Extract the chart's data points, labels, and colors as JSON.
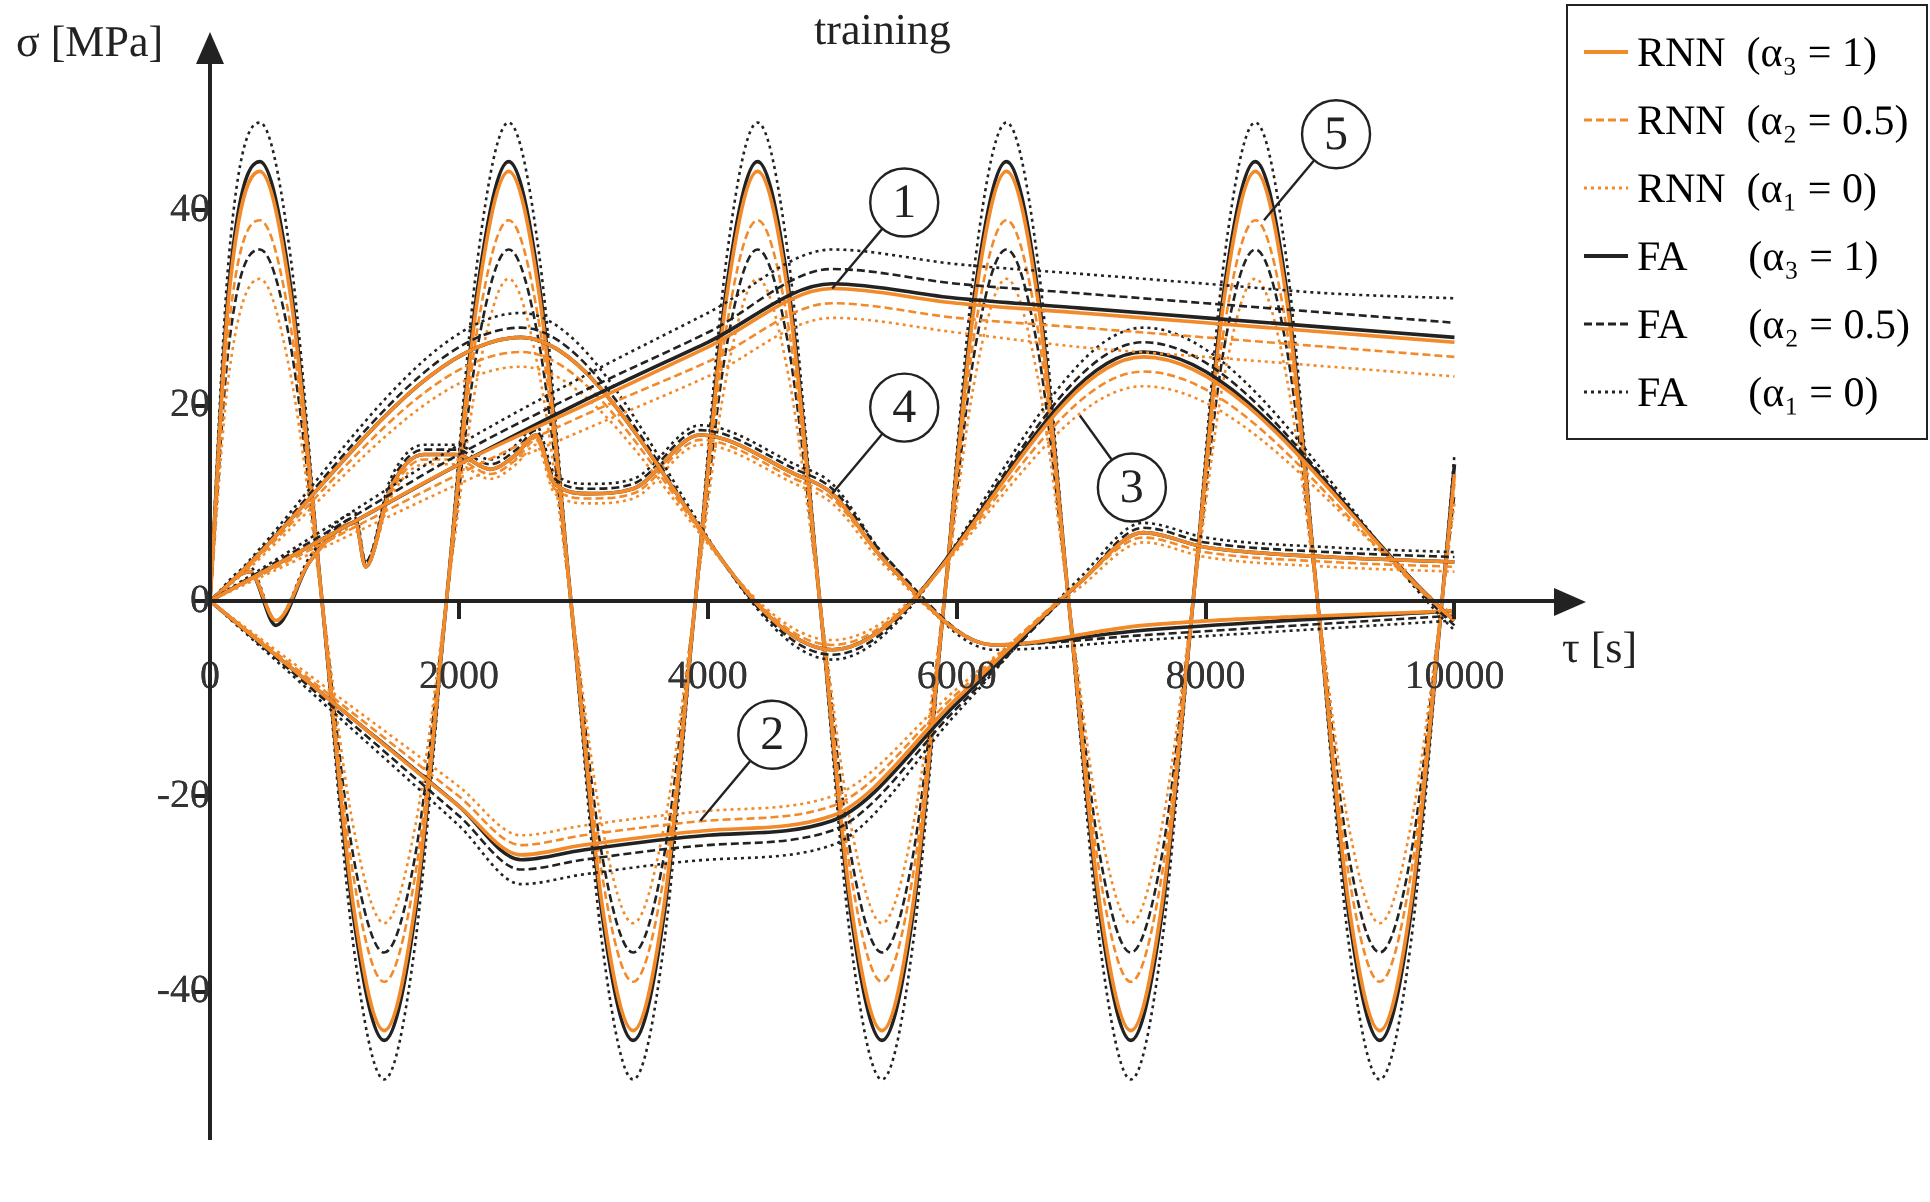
{
  "chart_data": {
    "type": "line",
    "title": "training",
    "xlabel": "τ [s]",
    "ylabel": "σ [MPa]",
    "xlim": [
      0,
      10800
    ],
    "ylim": [
      -55,
      55
    ],
    "xticks": [
      0,
      2000,
      4000,
      6000,
      8000,
      10000
    ],
    "yticks": [
      -40,
      -20,
      0,
      20,
      40
    ],
    "legend": "top right",
    "marker": "none",
    "annotations": [
      {
        "text": "1",
        "x": 5000,
        "y": 32
      },
      {
        "text": "2",
        "x": 3940,
        "y": -22.5
      },
      {
        "text": "3",
        "x": 6990,
        "y": 19
      },
      {
        "text": "4",
        "x": 5000,
        "y": 11
      },
      {
        "text": "5",
        "x": 8470,
        "y": 39
      }
    ],
    "series": [
      {
        "name": "RNN  (α₃ = 1)",
        "color": "#f28a2a",
        "line_style": "solid",
        "x": [
          0,
          1000,
          2000,
          3000,
          4000,
          5000,
          6000,
          7000,
          8000,
          9000,
          10000
        ],
        "values": [
          0,
          7,
          14,
          20,
          26,
          32,
          30.5,
          29.5,
          28.5,
          27.5,
          26.5
        ]
      },
      {
        "name": "RNN  (α₂ = 0.5)",
        "color": "#f28a2a",
        "line_style": "dashed",
        "x": [
          0,
          1000,
          2000,
          3000,
          4000,
          5000,
          6000,
          7000,
          8000,
          9000,
          10000
        ],
        "values": [
          0,
          6.5,
          13,
          19,
          24.5,
          30.5,
          29,
          28,
          27,
          26,
          25
        ]
      },
      {
        "name": "RNN  (α₁ = 0)",
        "color": "#f28a2a",
        "line_style": "dotted",
        "x": [
          0,
          1000,
          2000,
          3000,
          4000,
          5000,
          6000,
          7000,
          8000,
          9000,
          10000
        ],
        "values": [
          0,
          6,
          12,
          17.5,
          23,
          29,
          27.5,
          26,
          25,
          24,
          23
        ]
      },
      {
        "name": "FA      (α₃ = 1)",
        "color": "#222222",
        "line_style": "solid",
        "x": [
          0,
          1000,
          2000,
          3000,
          4000,
          5000,
          6000,
          7000,
          8000,
          9000,
          10000
        ],
        "values": [
          0,
          7,
          14,
          20.5,
          26.5,
          32.5,
          31,
          30,
          29,
          28,
          27
        ]
      },
      {
        "name": "FA      (α₂ = 0.5)",
        "color": "#222222",
        "line_style": "dashed",
        "x": [
          0,
          1000,
          2000,
          3000,
          4000,
          5000,
          6000,
          7000,
          8000,
          9000,
          10000
        ],
        "values": [
          0,
          7.5,
          15,
          21.5,
          27.5,
          34,
          32.5,
          31.5,
          30.5,
          29.5,
          28.5
        ]
      },
      {
        "name": "FA      (α₁ = 0)",
        "color": "#222222",
        "line_style": "dotted",
        "x": [
          0,
          1000,
          2000,
          3000,
          4000,
          5000,
          6000,
          7000,
          8000,
          9000,
          10000
        ],
        "values": [
          0,
          8,
          16,
          23,
          29.5,
          36,
          34.5,
          33.5,
          32.5,
          31.5,
          31
        ]
      },
      {
        "color": "#f28a2a",
        "line_style": "solid",
        "x": [
          0,
          1000,
          2000,
          2500,
          3000,
          4000,
          5000,
          6000,
          7000,
          7500,
          8000,
          9000,
          10000
        ],
        "values": [
          0,
          -10.5,
          -21,
          -26,
          -25,
          -23.5,
          -22,
          -10,
          2,
          7,
          5.5,
          4.5,
          4
        ]
      },
      {
        "color": "#f28a2a",
        "line_style": "dashed",
        "x": [
          0,
          1000,
          2000,
          2500,
          3000,
          4000,
          5000,
          6000,
          7000,
          7500,
          8000,
          9000,
          10000
        ],
        "values": [
          0,
          -10,
          -20,
          -25,
          -24,
          -22.5,
          -21,
          -9.5,
          2,
          6.5,
          5,
          4,
          3.5
        ]
      },
      {
        "color": "#f28a2a",
        "line_style": "dotted",
        "x": [
          0,
          1000,
          2000,
          2500,
          3000,
          4000,
          5000,
          6000,
          7000,
          7500,
          8000,
          9000,
          10000
        ],
        "values": [
          0,
          -9.5,
          -19,
          -24,
          -23,
          -21.5,
          -20,
          -9,
          1.5,
          6,
          4.5,
          3.5,
          3
        ]
      },
      {
        "color": "#222222",
        "line_style": "solid",
        "x": [
          0,
          1000,
          2000,
          2500,
          3000,
          4000,
          5000,
          6000,
          7000,
          7500,
          8000,
          9000,
          10000
        ],
        "values": [
          0,
          -10.5,
          -21,
          -26.5,
          -25.5,
          -24,
          -22.5,
          -10.5,
          2,
          7,
          5.5,
          4.5,
          4
        ]
      },
      {
        "color": "#222222",
        "line_style": "dashed",
        "x": [
          0,
          1000,
          2000,
          2500,
          3000,
          4000,
          5000,
          6000,
          7000,
          7500,
          8000,
          9000,
          10000
        ],
        "values": [
          0,
          -11,
          -22,
          -27.5,
          -26.5,
          -25,
          -23.5,
          -11,
          2,
          7.5,
          6,
          5,
          4.5
        ]
      },
      {
        "color": "#222222",
        "line_style": "dotted",
        "x": [
          0,
          1000,
          2000,
          2500,
          3000,
          4000,
          5000,
          6000,
          7000,
          7500,
          8000,
          9000,
          10000
        ],
        "values": [
          0,
          -11.5,
          -23,
          -29,
          -28,
          -26.5,
          -25,
          -11.5,
          2.5,
          8,
          6.5,
          5.5,
          5
        ]
      },
      {
        "color": "#f28a2a",
        "line_style": "solid",
        "x": [
          0,
          2500,
          5000,
          7500,
          10000
        ],
        "values": [
          0,
          27,
          -5,
          25,
          -2
        ]
      },
      {
        "color": "#f28a2a",
        "line_style": "dashed",
        "x": [
          0,
          2500,
          5000,
          7500,
          10000
        ],
        "values": [
          0,
          25.5,
          -4.5,
          23.5,
          -2
        ]
      },
      {
        "color": "#f28a2a",
        "line_style": "dotted",
        "x": [
          0,
          2500,
          5000,
          7500,
          10000
        ],
        "values": [
          0,
          24,
          -4,
          22,
          -1.5
        ]
      },
      {
        "color": "#222222",
        "line_style": "solid",
        "x": [
          0,
          2500,
          5000,
          7500,
          10000
        ],
        "values": [
          0,
          27,
          -5,
          25.5,
          -2
        ]
      },
      {
        "color": "#222222",
        "line_style": "dashed",
        "x": [
          0,
          2500,
          5000,
          7500,
          10000
        ],
        "values": [
          0,
          28,
          -5.5,
          26.5,
          -2.5
        ]
      },
      {
        "color": "#222222",
        "line_style": "dotted",
        "x": [
          0,
          2500,
          5000,
          7500,
          10000
        ],
        "values": [
          0,
          29.5,
          -6,
          28,
          -3
        ]
      },
      {
        "color": "#f28a2a",
        "line_style": "solid",
        "x": [
          0,
          320,
          530,
          800,
          1170,
          1250,
          1450,
          1720,
          1980,
          2250,
          2460,
          2620,
          2770,
          3050,
          3400,
          3940,
          4700,
          5000,
          5430,
          6300,
          7500,
          10000
        ],
        "values": [
          0,
          3,
          -2,
          4,
          8,
          3.5,
          11.5,
          15,
          15,
          13.5,
          15,
          17,
          12,
          11,
          11.5,
          17,
          13,
          11,
          4,
          -4.5,
          -2.5,
          -1
        ]
      },
      {
        "color": "#f28a2a",
        "line_style": "dashed",
        "x": [
          0,
          320,
          530,
          800,
          1170,
          1250,
          1450,
          1720,
          1980,
          2250,
          2460,
          2620,
          2770,
          3050,
          3400,
          3940,
          4700,
          5000,
          5430,
          6300,
          7500,
          10000
        ],
        "values": [
          0,
          3,
          -2,
          4,
          8,
          3.5,
          11,
          14.5,
          14.5,
          13,
          14.5,
          16.5,
          11.5,
          10.5,
          11,
          16.5,
          12.5,
          10.5,
          4,
          -4.5,
          -2.5,
          -1
        ]
      },
      {
        "color": "#f28a2a",
        "line_style": "dotted",
        "x": [
          0,
          320,
          530,
          800,
          1170,
          1250,
          1450,
          1720,
          1980,
          2250,
          2460,
          2620,
          2770,
          3050,
          3400,
          3940,
          4700,
          5000,
          5430,
          6300,
          7500,
          10000
        ],
        "values": [
          0,
          3,
          -2,
          4,
          7.5,
          3.5,
          10.5,
          14,
          14,
          12.5,
          14,
          16,
          11,
          10,
          10.5,
          16,
          12,
          10,
          3.5,
          -4.5,
          -2.5,
          -1
        ]
      },
      {
        "color": "#222222",
        "line_style": "solid",
        "x": [
          0,
          320,
          530,
          800,
          1170,
          1250,
          1450,
          1720,
          1980,
          2250,
          2460,
          2620,
          2770,
          3050,
          3400,
          3940,
          4700,
          5000,
          5430,
          6300,
          7500,
          10000
        ],
        "values": [
          0,
          3,
          -2.5,
          4,
          8,
          3.5,
          11.5,
          15,
          15,
          13.5,
          15,
          17,
          12,
          11,
          11.5,
          17,
          13,
          11,
          4,
          -4.5,
          -3,
          -1
        ]
      },
      {
        "color": "#222222",
        "line_style": "dashed",
        "x": [
          0,
          320,
          530,
          800,
          1170,
          1250,
          1450,
          1720,
          1980,
          2250,
          2460,
          2620,
          2770,
          3050,
          3400,
          3940,
          4700,
          5000,
          5430,
          6300,
          7500,
          10000
        ],
        "values": [
          0,
          3,
          -2,
          4,
          8.5,
          4,
          12,
          15.5,
          15.5,
          14,
          15.5,
          17.5,
          12.5,
          11.5,
          12,
          17.5,
          13.5,
          11.5,
          4.5,
          -4.5,
          -3.5,
          -1.5
        ]
      },
      {
        "color": "#222222",
        "line_style": "dotted",
        "x": [
          0,
          320,
          530,
          800,
          1170,
          1250,
          1450,
          1720,
          1980,
          2250,
          2460,
          2620,
          2770,
          3050,
          3400,
          3940,
          4700,
          5000,
          5430,
          6300,
          7500,
          10000
        ],
        "values": [
          0,
          3.5,
          -2,
          4.5,
          9,
          4,
          12.5,
          16,
          16,
          14.5,
          16,
          18,
          13,
          12,
          12.5,
          18,
          14,
          12,
          4.5,
          -5,
          -4,
          -2
        ]
      },
      {
        "color": "#f28a2a",
        "line_style": "solid",
        "x": [
          0,
          150,
          400,
          650,
          900,
          1150,
          1400,
          1650,
          1900,
          2150,
          2400,
          2650,
          2900,
          3150,
          3400,
          3650,
          3900,
          4150,
          4400,
          4650,
          4900,
          5150,
          5400,
          5650,
          5900,
          6150,
          6400,
          6650,
          6900,
          7150,
          7400,
          7650,
          7900,
          8150,
          8400,
          8650,
          8900,
          9150,
          9400,
          9650,
          9900,
          10000
        ],
        "values": [
          0,
          31,
          44,
          31,
          0,
          -31,
          -44,
          -31,
          0,
          31,
          44,
          31,
          0,
          -31,
          -44,
          -31,
          0,
          31,
          44,
          31,
          0,
          -31,
          -44,
          -31,
          0,
          31,
          44,
          31,
          0,
          -31,
          -44,
          -31,
          0,
          31,
          44,
          31,
          0,
          -31,
          -44,
          -31,
          0,
          13
        ]
      },
      {
        "color": "#f28a2a",
        "line_style": "dashed",
        "x": [
          0,
          150,
          400,
          650,
          900,
          1150,
          1400,
          1650,
          1900,
          2150,
          2400,
          2650,
          2900,
          3150,
          3400,
          3650,
          3900,
          4150,
          4400,
          4650,
          4900,
          5150,
          5400,
          5650,
          5900,
          6150,
          6400,
          6650,
          6900,
          7150,
          7400,
          7650,
          7900,
          8150,
          8400,
          8650,
          8900,
          9150,
          9400,
          9650,
          9900,
          10000
        ],
        "values": [
          0,
          28,
          39,
          28,
          0,
          -28,
          -39,
          -28,
          0,
          28,
          39,
          28,
          0,
          -28,
          -39,
          -28,
          0,
          28,
          39,
          28,
          0,
          -28,
          -39,
          -28,
          0,
          28,
          39,
          28,
          0,
          -28,
          -39,
          -28,
          0,
          28,
          39,
          28,
          0,
          -28,
          -39,
          -28,
          0,
          12
        ]
      },
      {
        "color": "#f28a2a",
        "line_style": "dotted",
        "x": [
          0,
          150,
          400,
          650,
          900,
          1150,
          1400,
          1650,
          1900,
          2150,
          2400,
          2650,
          2900,
          3150,
          3400,
          3650,
          3900,
          4150,
          4400,
          4650,
          4900,
          5150,
          5400,
          5650,
          5900,
          6150,
          6400,
          6650,
          6900,
          7150,
          7400,
          7650,
          7900,
          8150,
          8400,
          8650,
          8900,
          9150,
          9400,
          9650,
          9900,
          10000
        ],
        "values": [
          0,
          23,
          33,
          23,
          0,
          -23,
          -33,
          -23,
          0,
          23,
          33,
          23,
          0,
          -23,
          -33,
          -23,
          0,
          23,
          33,
          23,
          0,
          -23,
          -33,
          -23,
          0,
          23,
          33,
          23,
          0,
          -23,
          -33,
          -23,
          0,
          23,
          33,
          23,
          0,
          -23,
          -33,
          -23,
          0,
          10
        ]
      },
      {
        "color": "#222222",
        "line_style": "solid",
        "x": [
          0,
          150,
          400,
          650,
          900,
          1150,
          1400,
          1650,
          1900,
          2150,
          2400,
          2650,
          2900,
          3150,
          3400,
          3650,
          3900,
          4150,
          4400,
          4650,
          4900,
          5150,
          5400,
          5650,
          5900,
          6150,
          6400,
          6650,
          6900,
          7150,
          7400,
          7650,
          7900,
          8150,
          8400,
          8650,
          8900,
          9150,
          9400,
          9650,
          9900,
          10000
        ],
        "values": [
          0,
          32,
          45,
          32,
          0,
          -32,
          -45,
          -32,
          0,
          32,
          45,
          32,
          0,
          -32,
          -45,
          -32,
          0,
          32,
          45,
          32,
          0,
          -32,
          -45,
          -32,
          0,
          32,
          45,
          32,
          0,
          -32,
          -45,
          -32,
          0,
          32,
          45,
          32,
          0,
          -32,
          -45,
          -32,
          0,
          14
        ]
      },
      {
        "color": "#222222",
        "line_style": "dashed",
        "x": [
          0,
          150,
          400,
          650,
          900,
          1150,
          1400,
          1650,
          1900,
          2150,
          2400,
          2650,
          2900,
          3150,
          3400,
          3650,
          3900,
          4150,
          4400,
          4650,
          4900,
          5150,
          5400,
          5650,
          5900,
          6150,
          6400,
          6650,
          6900,
          7150,
          7400,
          7650,
          7900,
          8150,
          8400,
          8650,
          8900,
          9150,
          9400,
          9650,
          9900,
          10000
        ],
        "values": [
          0,
          26,
          36,
          26,
          0,
          -26,
          -36,
          -26,
          0,
          26,
          36,
          26,
          0,
          -26,
          -36,
          -26,
          0,
          26,
          36,
          26,
          0,
          -26,
          -36,
          -26,
          0,
          26,
          36,
          26,
          0,
          -26,
          -36,
          -26,
          0,
          26,
          36,
          26,
          0,
          -26,
          -36,
          -26,
          0,
          11
        ]
      },
      {
        "color": "#222222",
        "line_style": "dotted",
        "x": [
          0,
          150,
          400,
          650,
          900,
          1150,
          1400,
          1650,
          1900,
          2150,
          2400,
          2650,
          2900,
          3150,
          3400,
          3650,
          3900,
          4150,
          4400,
          4650,
          4900,
          5150,
          5400,
          5650,
          5900,
          6150,
          6400,
          6650,
          6900,
          7150,
          7400,
          7650,
          7900,
          8150,
          8400,
          8650,
          8900,
          9150,
          9400,
          9650,
          9900,
          10000
        ],
        "values": [
          0,
          35,
          49,
          35,
          0,
          -35,
          -49,
          -35,
          0,
          35,
          49,
          35,
          0,
          -35,
          -49,
          -35,
          0,
          35,
          49,
          35,
          0,
          -35,
          -49,
          -35,
          0,
          35,
          49,
          35,
          0,
          -35,
          -49,
          -35,
          0,
          35,
          49,
          35,
          0,
          -35,
          -49,
          -35,
          0,
          15
        ]
      }
    ]
  }
}
